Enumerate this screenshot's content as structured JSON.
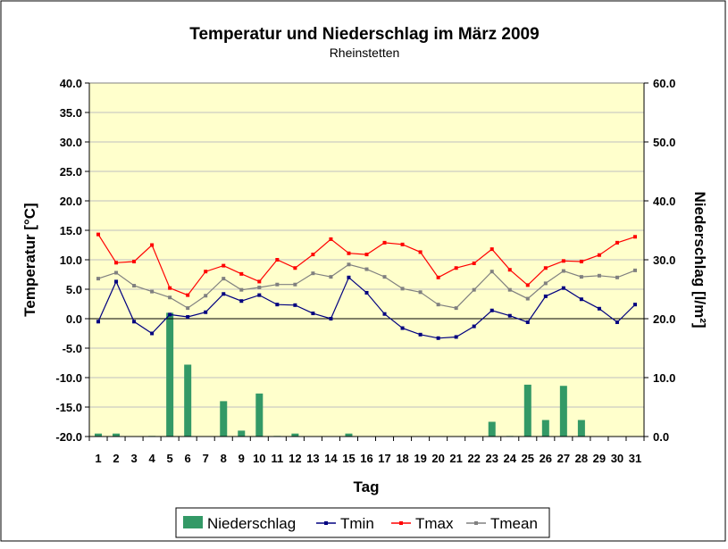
{
  "chart_data": {
    "type": "bar+line",
    "title": "Temperatur und Niederschlag im März 2009",
    "subtitle": "Rheinstetten",
    "xlabel": "Tag",
    "ylabel_left": "Temperatur [°C]",
    "ylabel_right": "Niederschlag [l/m²]",
    "categories": [
      "1",
      "2",
      "3",
      "4",
      "5",
      "6",
      "7",
      "8",
      "9",
      "10",
      "11",
      "12",
      "13",
      "14",
      "15",
      "16",
      "17",
      "18",
      "19",
      "20",
      "21",
      "22",
      "23",
      "24",
      "25",
      "26",
      "27",
      "28",
      "29",
      "30",
      "31"
    ],
    "ylim_left": [
      -20,
      40
    ],
    "yticks_left": [
      "40.0",
      "35.0",
      "30.0",
      "25.0",
      "20.0",
      "15.0",
      "10.0",
      "5.0",
      "0.0",
      "-5.0",
      "-10.0",
      "-15.0",
      "-20.0"
    ],
    "ylim_right": [
      0,
      60
    ],
    "yticks_right": [
      "60.0",
      "50.0",
      "40.0",
      "30.0",
      "20.0",
      "10.0",
      "0.0"
    ],
    "grid": true,
    "legend_position": "bottom",
    "series": [
      {
        "name": "Niederschlag",
        "type": "bar",
        "axis": "right",
        "color": "#339966",
        "values": [
          0.5,
          0.5,
          0,
          0.1,
          21,
          12.2,
          0,
          6,
          1,
          7.3,
          0.1,
          0.5,
          0,
          0,
          0.5,
          0,
          0,
          0,
          0,
          0,
          0,
          0,
          2.5,
          0.1,
          8.8,
          2.8,
          8.6,
          2.8,
          0,
          0,
          0
        ]
      },
      {
        "name": "Tmin",
        "type": "line",
        "axis": "left",
        "color": "#000080",
        "values": [
          -0.5,
          6.3,
          -0.5,
          -2.5,
          0.7,
          0.3,
          1.1,
          4.2,
          3.0,
          4.0,
          2.4,
          2.3,
          0.9,
          0.0,
          7.0,
          4.4,
          0.8,
          -1.6,
          -2.7,
          -3.3,
          -3.1,
          -1.3,
          1.4,
          0.5,
          -0.6,
          3.8,
          5.2,
          3.3,
          1.7,
          -0.6,
          2.4
        ]
      },
      {
        "name": "Tmax",
        "type": "line",
        "axis": "left",
        "color": "#ff0000",
        "values": [
          14.3,
          9.5,
          9.7,
          12.5,
          5.2,
          4.0,
          8.0,
          9.0,
          7.6,
          6.3,
          10.0,
          8.6,
          10.9,
          13.5,
          11.1,
          10.9,
          12.9,
          12.6,
          11.3,
          7.0,
          8.6,
          9.4,
          11.8,
          8.3,
          5.7,
          8.6,
          9.8,
          9.7,
          10.8,
          12.9,
          13.9
        ]
      },
      {
        "name": "Tmean",
        "type": "line",
        "axis": "left",
        "color": "#808080",
        "values": [
          6.8,
          7.8,
          5.6,
          4.6,
          3.6,
          1.8,
          3.9,
          6.8,
          4.9,
          5.3,
          5.8,
          5.8,
          7.7,
          7.1,
          9.2,
          8.4,
          7.1,
          5.1,
          4.5,
          2.4,
          1.8,
          4.9,
          8.0,
          4.9,
          3.4,
          6.0,
          8.1,
          7.1,
          7.3,
          7.0,
          8.2
        ]
      }
    ]
  }
}
